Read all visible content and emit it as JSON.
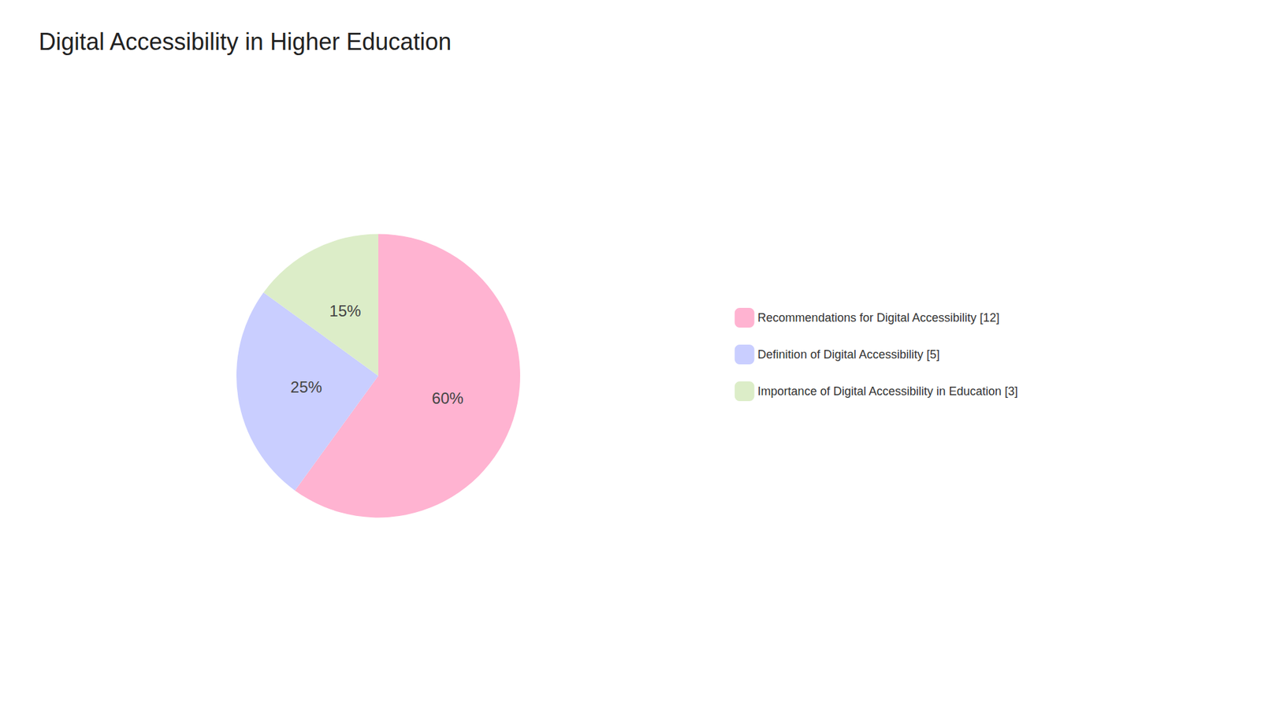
{
  "chart_data": {
    "type": "pie",
    "title": "Digital Accessibility in Higher Education",
    "categories": [
      "Recommendations for Digital Accessibility [12]",
      "Definition of Digital Accessibility [5]",
      "Importance of Digital Accessibility in Education [3]"
    ],
    "values": [
      60,
      25,
      15
    ],
    "value_labels": [
      "60%",
      "25%",
      "15%"
    ],
    "colors": [
      "#FFB3D1",
      "#C9CEFF",
      "#DCEDC8"
    ],
    "data_labels": true,
    "legend": "right"
  }
}
